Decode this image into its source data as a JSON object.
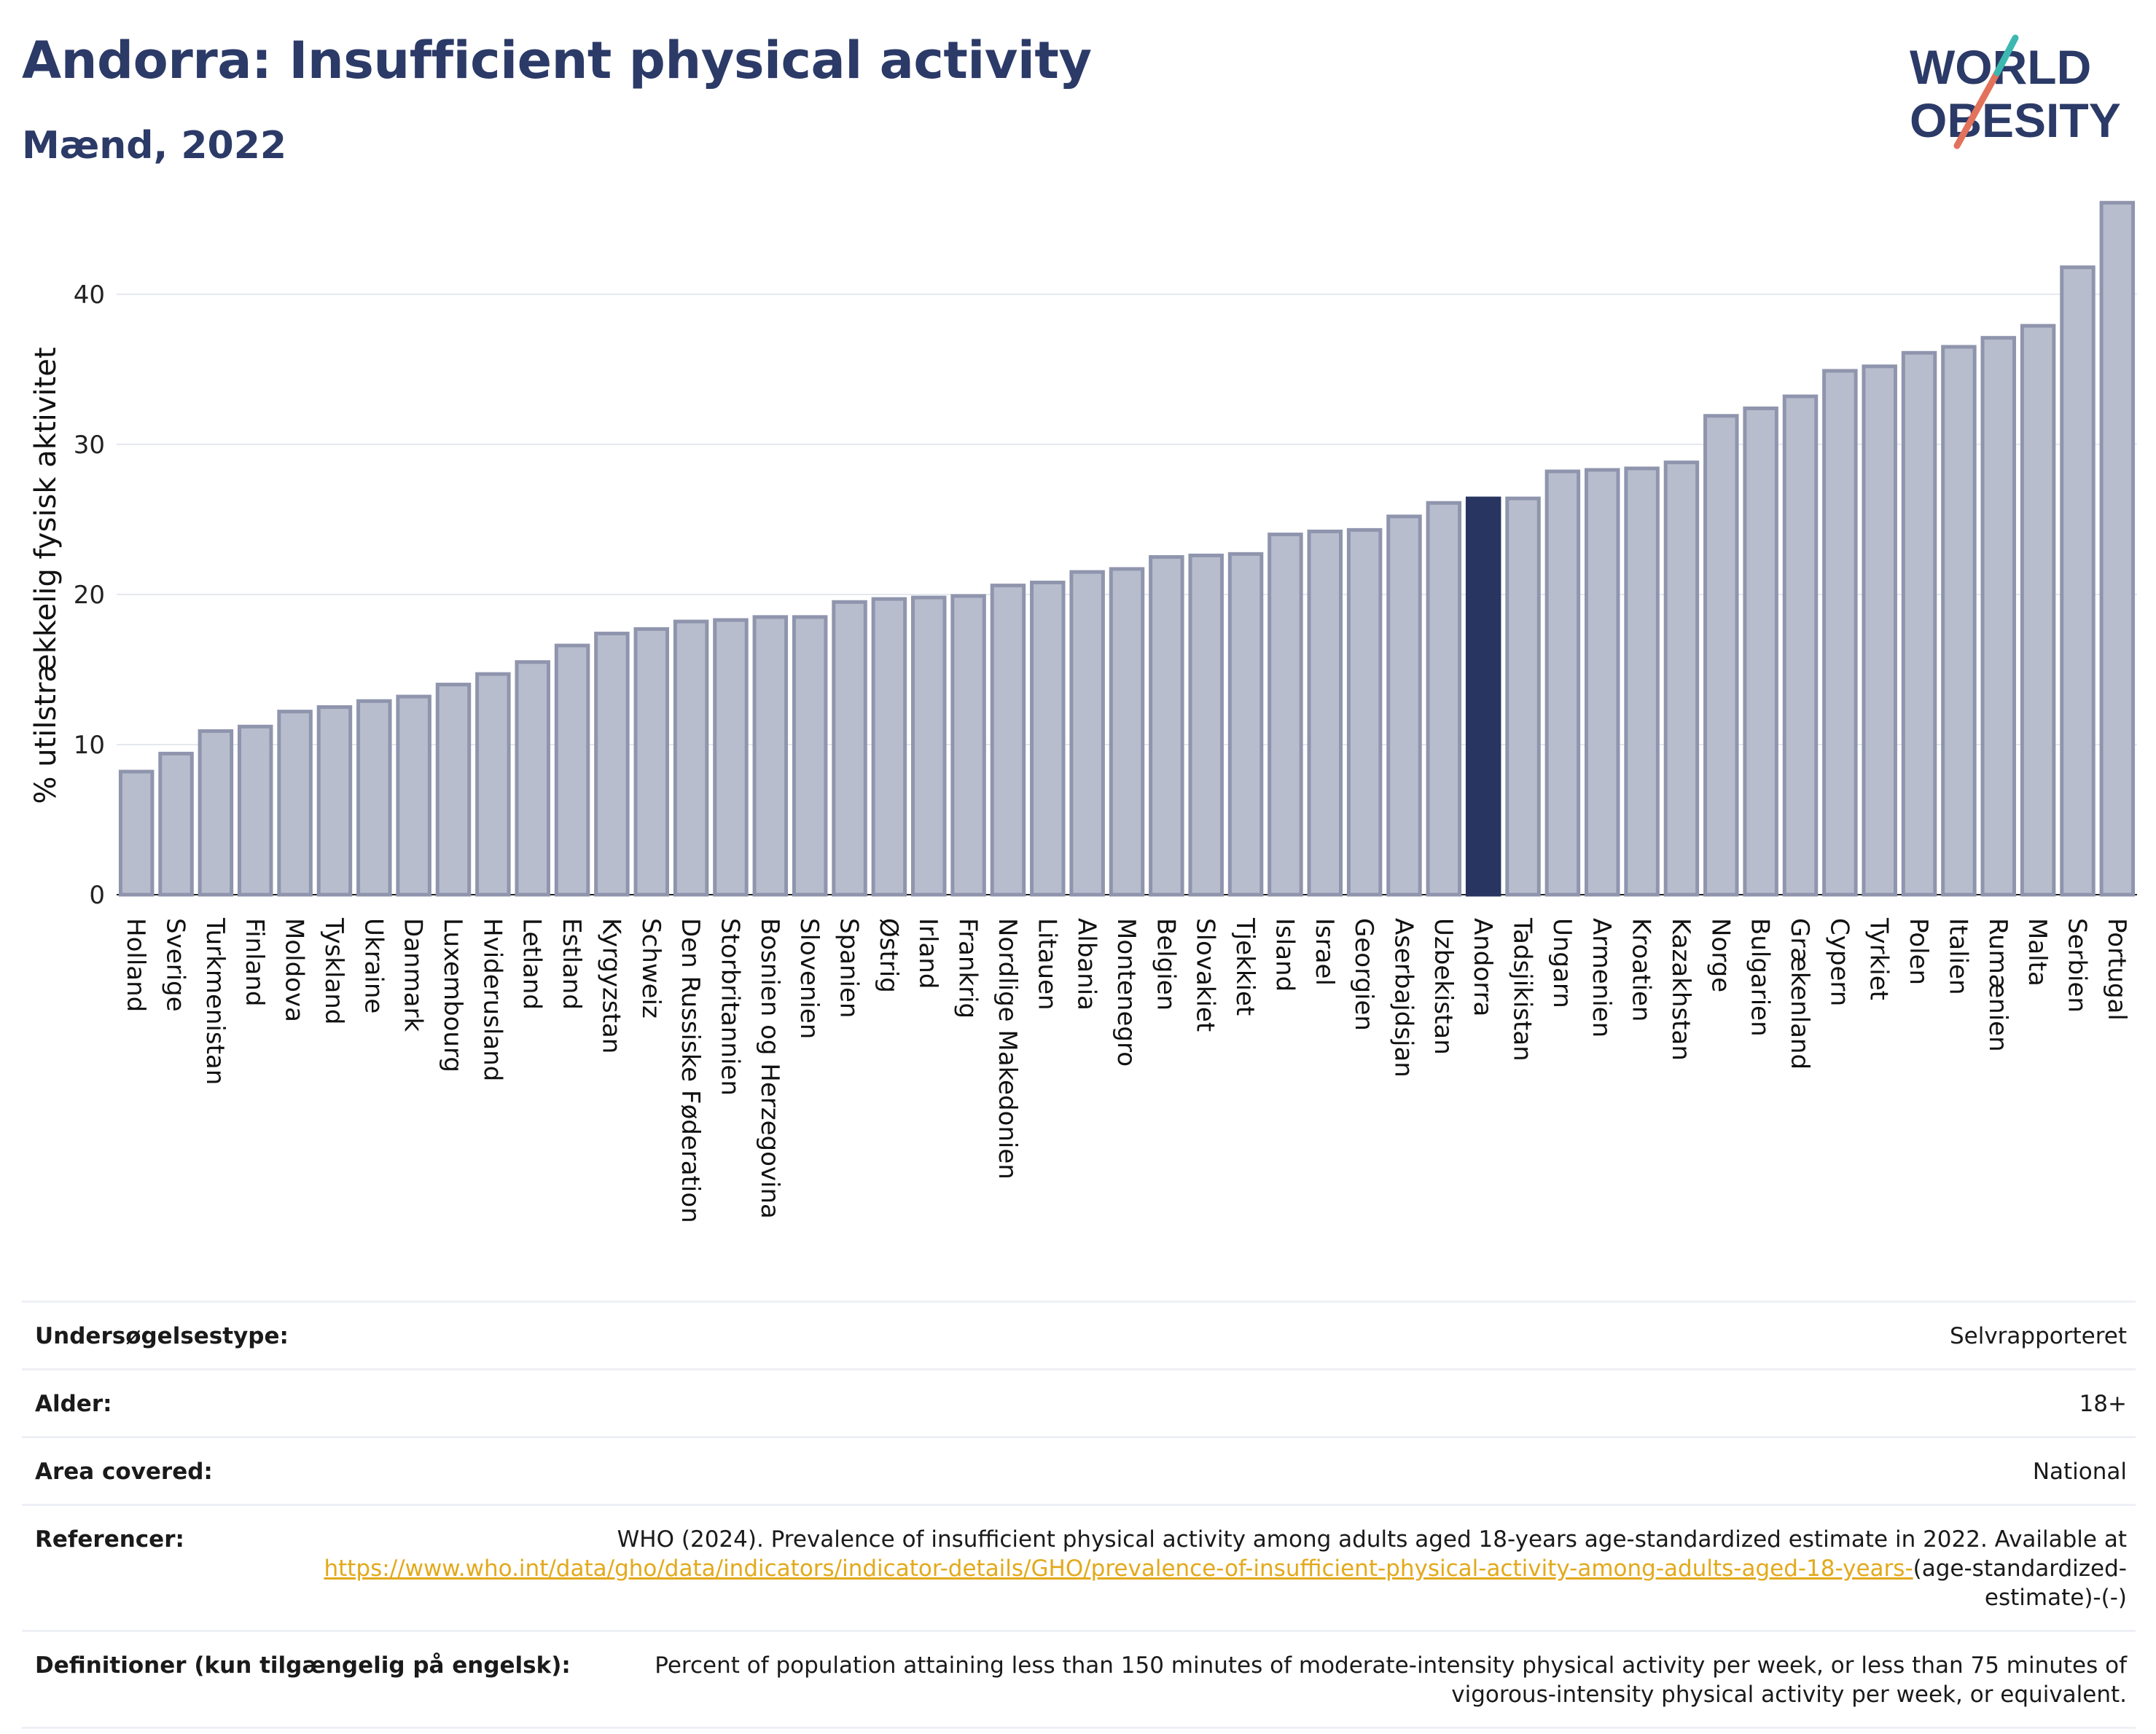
{
  "title": "Andorra: Insufficient physical activity",
  "subtitle": "Mænd, 2022",
  "logo": {
    "line1": "WORLD",
    "line2": "OBESITY"
  },
  "colors": {
    "title": "#2b3a67",
    "bar": "#b8bdcd",
    "bar_edge": "#8f95ad",
    "highlight": "#283561",
    "link": "#e3a91b"
  },
  "chart_data": {
    "type": "bar",
    "ylabel": "% utilstrækkelig fysisk aktivitet",
    "xlabel": "",
    "ylim": [
      0,
      46.5
    ],
    "yticks": [
      0,
      10,
      20,
      30,
      40
    ],
    "grid": true,
    "highlight": "Andorra",
    "categories": [
      "Holland",
      "Sverige",
      "Turkmenistan",
      "Finland",
      "Moldova",
      "Tyskland",
      "Ukraine",
      "Danmark",
      "Luxembourg",
      "Hviderusland",
      "Letland",
      "Estland",
      "Kyrgyzstan",
      "Schweiz",
      "Den Russiske Føderation",
      "Storbritannien",
      "Bosnien og Herzegovina",
      "Slovenien",
      "Spanien",
      "Østrig",
      "Irland",
      "Frankrig",
      "Nordlige Makedonien",
      "Litauen",
      "Albania",
      "Montenegro",
      "Belgien",
      "Slovakiet",
      "Tjekkiet",
      "Island",
      "Israel",
      "Georgien",
      "Aserbajdsjan",
      "Uzbekistan",
      "Andorra",
      "Tadsjikistan",
      "Ungarn",
      "Armenien",
      "Kroatien",
      "Kazakhstan",
      "Norge",
      "Bulgarien",
      "Grækenland",
      "Cypern",
      "Tyrkiet",
      "Polen",
      "Italien",
      "Rumænien",
      "Malta",
      "Serbien",
      "Portugal"
    ],
    "values": [
      8.2,
      9.4,
      10.9,
      11.2,
      12.2,
      12.5,
      12.9,
      13.2,
      14.0,
      14.7,
      15.5,
      16.6,
      17.4,
      17.7,
      18.2,
      18.3,
      18.5,
      18.5,
      19.5,
      19.7,
      19.8,
      19.9,
      20.6,
      20.8,
      21.5,
      21.7,
      22.5,
      22.6,
      22.7,
      24.0,
      24.2,
      24.3,
      25.2,
      26.1,
      26.4,
      26.4,
      28.2,
      28.3,
      28.4,
      28.8,
      31.9,
      32.4,
      33.2,
      34.9,
      35.2,
      36.1,
      36.5,
      37.1,
      37.9,
      41.8,
      46.1
    ]
  },
  "info": [
    {
      "label": "Undersøgelsestype:",
      "value": "Selvrapporteret"
    },
    {
      "label": "Alder:",
      "value": "18+"
    },
    {
      "label": "Area covered:",
      "value": "National"
    },
    {
      "label": "Referencer:",
      "value": "WHO (2024). Prevalence of insufficient physical activity among adults aged 18-years age-standardized estimate in 2022. Available at",
      "link": "https://www.who.int/data/gho/data/indicators/indicator-details/GHO/prevalence-of-insufficient-physical-activity-among-adults-aged-18-years-",
      "suffix": "(age-standardized-estimate)-(-)"
    },
    {
      "label": "Definitioner (kun tilgængelig på engelsk):",
      "value": "Percent of population attaining less than 150 minutes of moderate-intensity physical activity per week, or less than 75 minutes of vigorous-intensity physical activity per week, or equivalent."
    }
  ]
}
